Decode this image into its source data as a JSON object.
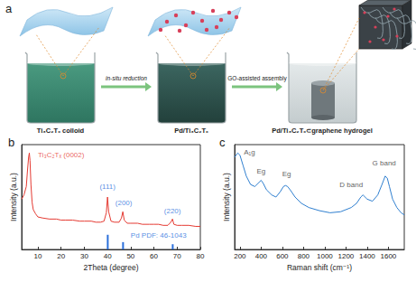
{
  "panel_a": {
    "label": "a",
    "stages": [
      "Ti₃C₂Tₓ colloid",
      "Pd/Ti₃C₂Tₓ",
      "Pd/Ti₃C₂Tₓ⊂graphene hydrogel"
    ],
    "steps": [
      "in-situ reduction",
      "GO-assisted assembly"
    ]
  },
  "chart_data": [
    {
      "panel": "b",
      "type": "line",
      "xlabel": "2Theta (degree)",
      "ylabel": "Intensity (a.u.)",
      "xlim": [
        3,
        80
      ],
      "xticks": [
        10,
        20,
        30,
        40,
        50,
        60,
        70,
        80
      ],
      "ylim": [
        0,
        100
      ],
      "tick_labels": "x",
      "grid": false,
      "series": [
        {
          "type": "line",
          "color": "#e53a32",
          "x": [
            3,
            4,
            5,
            5.5,
            6,
            6.3,
            6.6,
            7,
            7.5,
            8,
            9,
            10,
            12,
            15,
            18,
            20,
            22,
            25,
            28,
            30,
            33,
            35,
            37,
            38.5,
            39.5,
            40,
            40.5,
            41.5,
            43,
            45,
            46,
            46.6,
            47.2,
            48.5,
            50,
            53,
            55,
            58,
            60,
            62,
            64,
            66,
            67.3,
            68,
            68.6,
            70,
            72,
            75,
            78,
            80
          ],
          "values": [
            48,
            52,
            60,
            75,
            88,
            92,
            85,
            62,
            45,
            38,
            34,
            31,
            30,
            29,
            29,
            28,
            28,
            28,
            27,
            27,
            27,
            26,
            26,
            27,
            35,
            50,
            36,
            27,
            26,
            26,
            30,
            36,
            28,
            25,
            25,
            25,
            24,
            24,
            24,
            24,
            23,
            23,
            26,
            29,
            24,
            23,
            23,
            23,
            22,
            22
          ]
        },
        {
          "type": "bar",
          "color": "#2a6fdb",
          "x": [
            40.1,
            46.7,
            68.1
          ],
          "values": [
            14,
            7,
            5
          ]
        }
      ],
      "annotations": [
        {
          "text": "Ti₃C₂Tₓ (0002)",
          "x": 20,
          "y": 90,
          "color": "#e53a32"
        },
        {
          "text": "(111)",
          "x": 40,
          "y": 60,
          "color": "#2a6fdb"
        },
        {
          "text": "(200)",
          "x": 47,
          "y": 44,
          "color": "#2a6fdb"
        },
        {
          "text": "(220)",
          "x": 68,
          "y": 37,
          "color": "#2a6fdb"
        },
        {
          "text": "Pd PDF: 46-1043",
          "x": 62,
          "y": 13,
          "color": "#2a6fdb"
        }
      ]
    },
    {
      "panel": "c",
      "type": "line",
      "xlabel": "Raman shift (cm⁻¹)",
      "ylabel": "Intensity (a.u.)",
      "xlim": [
        150,
        1750
      ],
      "xticks": [
        200,
        400,
        600,
        800,
        1000,
        1200,
        1400,
        1600
      ],
      "ylim": [
        0,
        100
      ],
      "tick_labels": "x",
      "grid": false,
      "series": [
        {
          "type": "line",
          "color": "#2f7fd0",
          "x": [
            150,
            180,
            200,
            230,
            260,
            300,
            340,
            380,
            400,
            420,
            450,
            500,
            540,
            580,
            610,
            630,
            650,
            680,
            720,
            780,
            850,
            950,
            1050,
            1150,
            1250,
            1300,
            1340,
            1360,
            1400,
            1450,
            1500,
            1540,
            1570,
            1590,
            1610,
            1640,
            1680,
            1720,
            1750
          ],
          "values": [
            88,
            92,
            90,
            80,
            70,
            62,
            60,
            64,
            66,
            63,
            57,
            52,
            50,
            55,
            60,
            61,
            60,
            56,
            50,
            44,
            40,
            37,
            35,
            36,
            40,
            44,
            50,
            52,
            48,
            46,
            52,
            62,
            70,
            68,
            60,
            48,
            40,
            35,
            33
          ]
        }
      ],
      "annotations": [
        {
          "text": "A₁g",
          "x": 290,
          "y": 93,
          "color": "#333333"
        },
        {
          "text": "Eg",
          "x": 400,
          "y": 75,
          "color": "#333333"
        },
        {
          "text": "Eg",
          "x": 640,
          "y": 72,
          "color": "#333333"
        },
        {
          "text": "D band",
          "x": 1250,
          "y": 62,
          "color": "#333333"
        },
        {
          "text": "G band",
          "x": 1560,
          "y": 82,
          "color": "#333333"
        }
      ]
    }
  ]
}
